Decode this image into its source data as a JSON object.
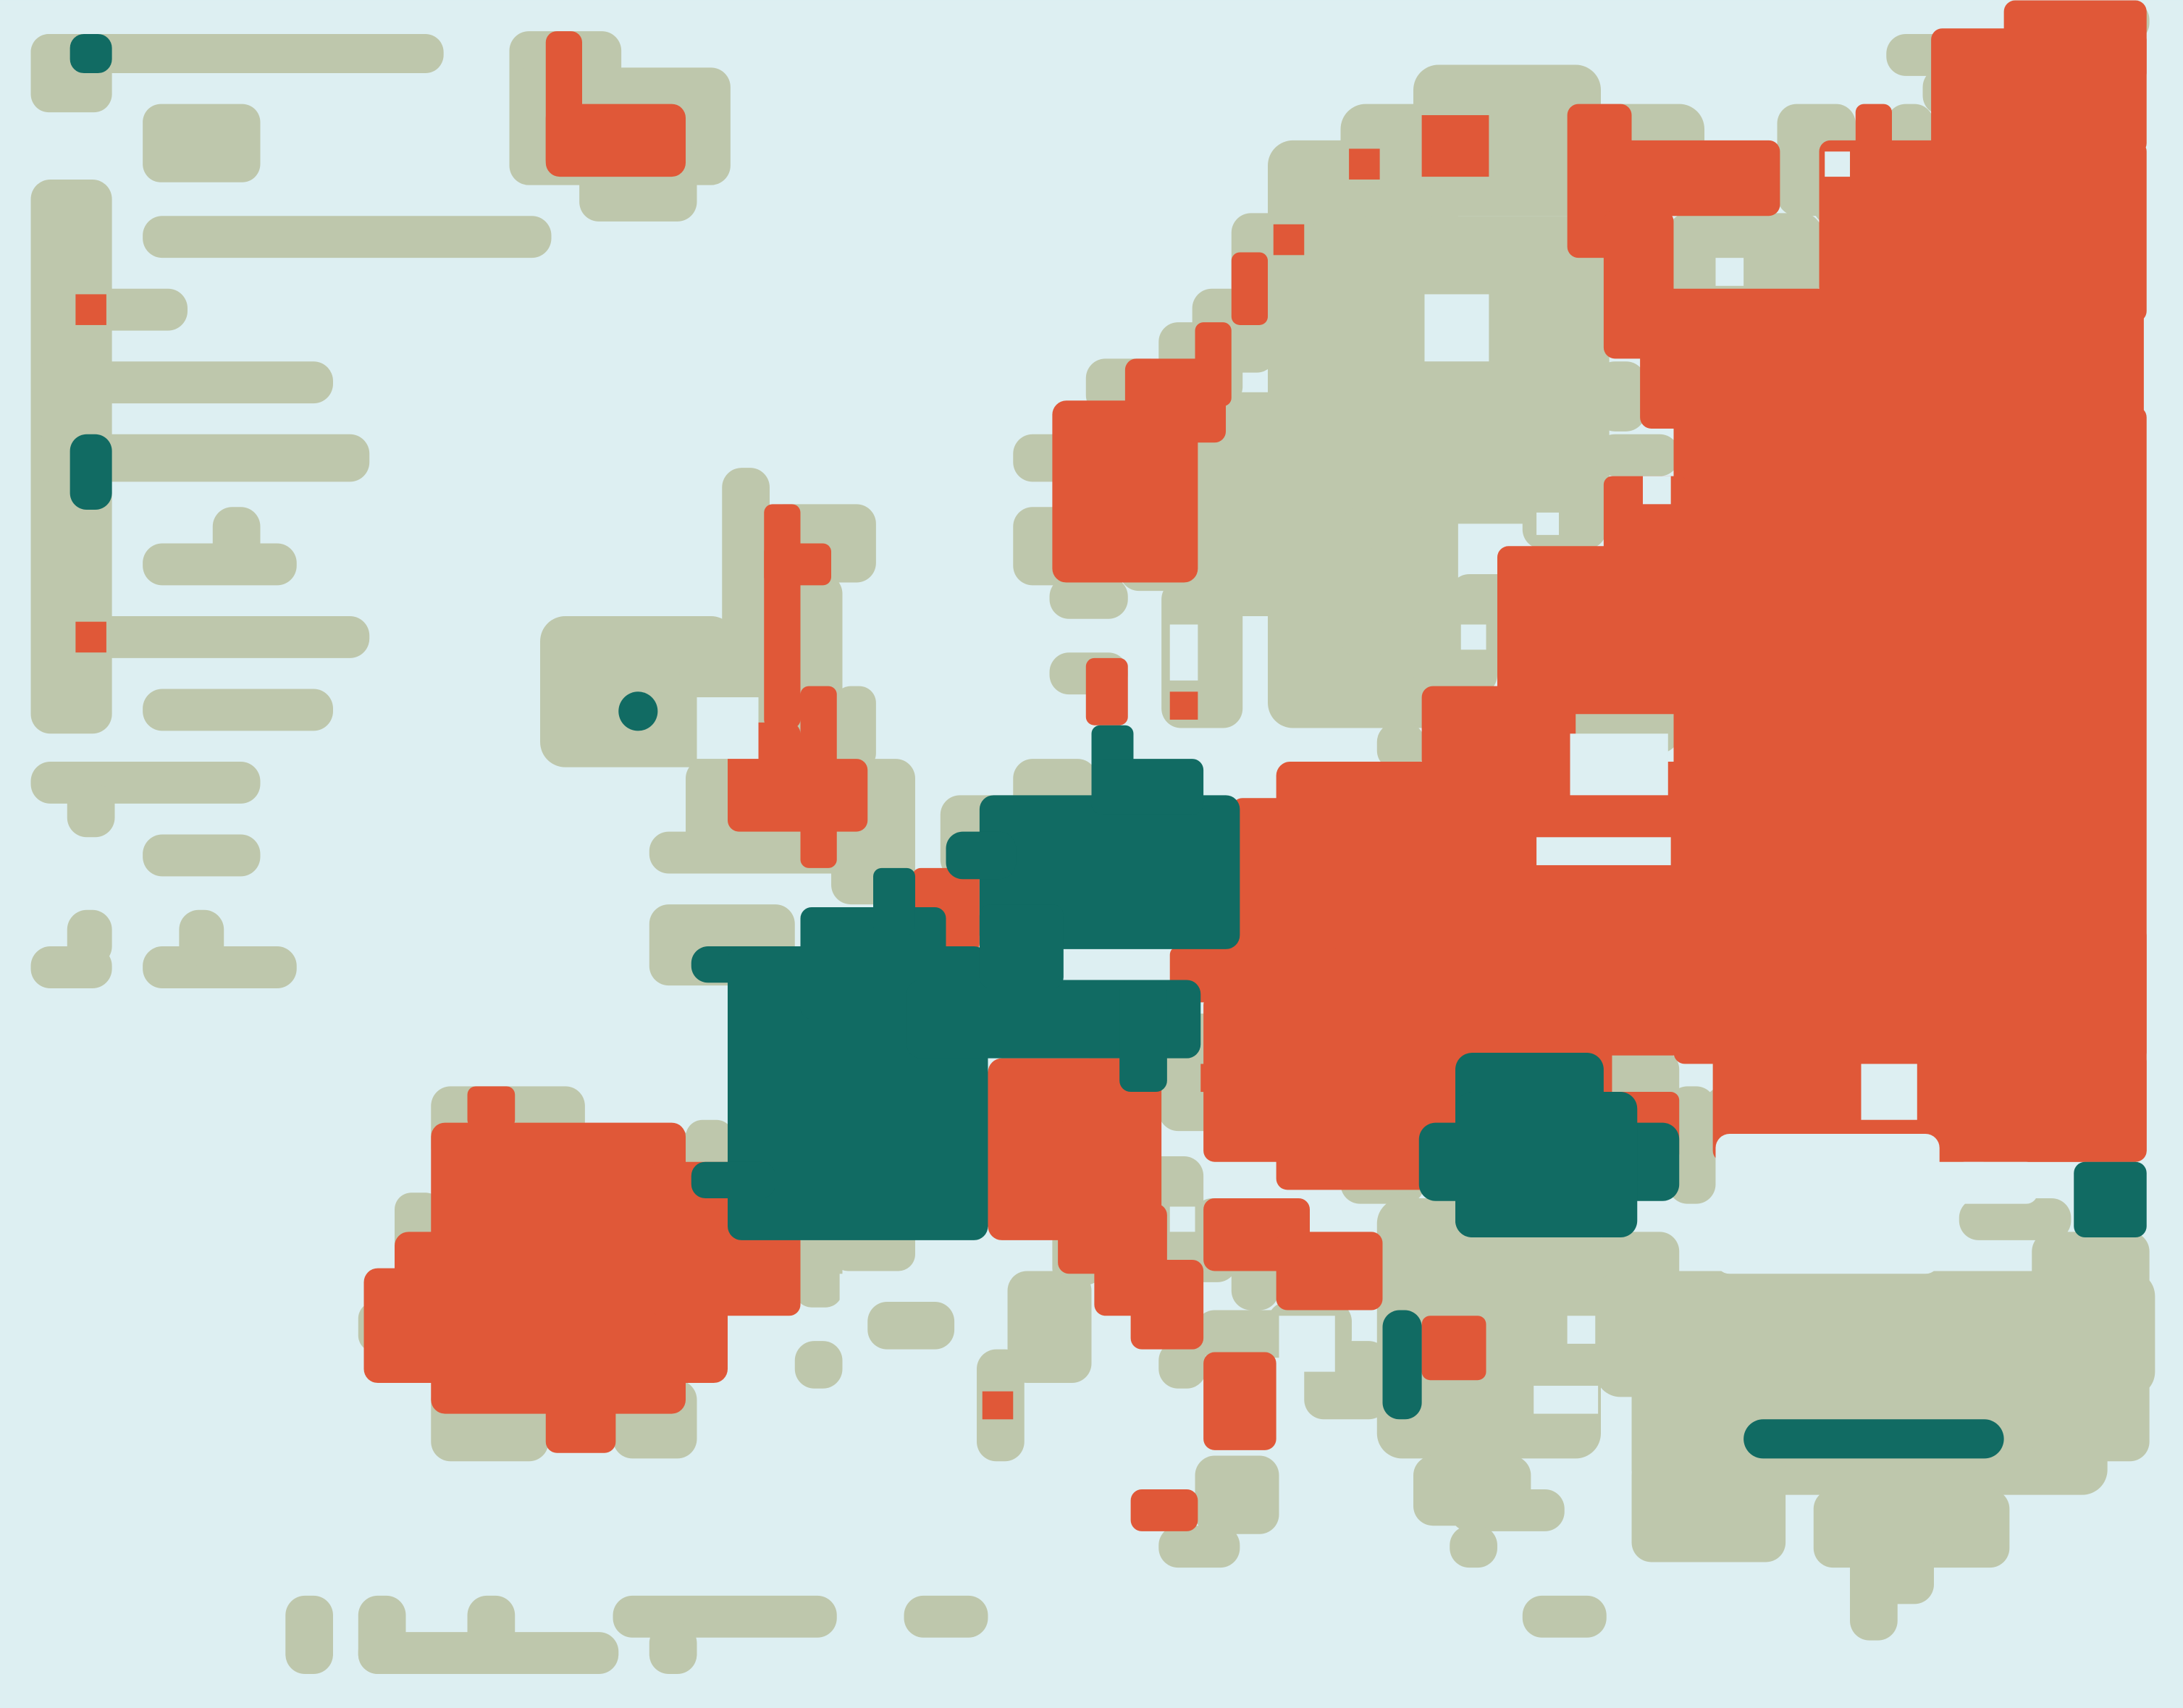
{
  "colors": {
    "sea": "#DDEFF2",
    "land": "#BEC7AC",
    "highlight_orange": "#E05838",
    "highlight_teal": "#116B63"
  },
  "legend": {
    "entries": [
      {
        "swatch": "teal-square"
      },
      {
        "swatch": "orange-square"
      },
      {
        "swatch": "teal-bar"
      },
      {
        "swatch": "orange-square"
      }
    ]
  },
  "map": {
    "style": "pixelated choropleth of Europe",
    "categories": [
      "orange",
      "teal",
      "neutral land"
    ]
  }
}
